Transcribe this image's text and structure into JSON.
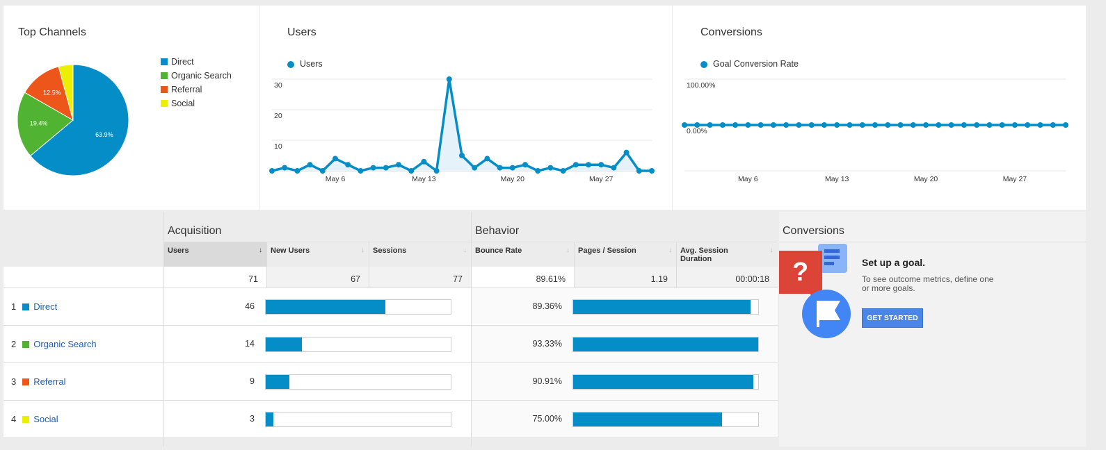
{
  "top_channels": {
    "title": "Top Channels",
    "slices": [
      {
        "name": "Direct",
        "percent": 63.9,
        "label": "63.9%",
        "color": "#058dc7"
      },
      {
        "name": "Organic Search",
        "percent": 19.4,
        "label": "19.4%",
        "color": "#50b432"
      },
      {
        "name": "Referral",
        "percent": 12.5,
        "label": "12.5%",
        "color": "#ed561b"
      },
      {
        "name": "Social",
        "percent": 4.2,
        "label": "",
        "color": "#edef00"
      }
    ]
  },
  "users_chart": {
    "title": "Users",
    "legend": "Users",
    "yticks": [
      "30",
      "20",
      "10"
    ],
    "xticks": [
      "May 6",
      "May 13",
      "May 20",
      "May 27"
    ]
  },
  "conversions_chart": {
    "title": "Conversions",
    "legend": "Goal Conversion Rate",
    "yticks": [
      "100.00%",
      "0.00%"
    ],
    "xticks": [
      "May 6",
      "May 13",
      "May 20",
      "May 27"
    ]
  },
  "chart_data": [
    {
      "type": "pie",
      "title": "Top Channels",
      "categories": [
        "Direct",
        "Organic Search",
        "Referral",
        "Social"
      ],
      "values": [
        63.9,
        19.4,
        12.5,
        4.2
      ]
    },
    {
      "type": "area",
      "title": "Users",
      "series": [
        {
          "name": "Users",
          "values": [
            0,
            1,
            0,
            2,
            0,
            4,
            2,
            0,
            1,
            1,
            2,
            0,
            3,
            0,
            30,
            5,
            1,
            4,
            1,
            1,
            2,
            0,
            1,
            0,
            2,
            2,
            2,
            1,
            6,
            0,
            0
          ]
        }
      ],
      "xticks": [
        "May 6",
        "May 13",
        "May 20",
        "May 27"
      ],
      "ylim": [
        0,
        30
      ]
    },
    {
      "type": "line",
      "title": "Conversions",
      "series": [
        {
          "name": "Goal Conversion Rate",
          "values": [
            0,
            0,
            0,
            0,
            0,
            0,
            0,
            0,
            0,
            0,
            0,
            0,
            0,
            0,
            0,
            0,
            0,
            0,
            0,
            0,
            0,
            0,
            0,
            0,
            0,
            0,
            0,
            0,
            0,
            0,
            0
          ]
        }
      ],
      "xticks": [
        "May 6",
        "May 13",
        "May 20",
        "May 27"
      ],
      "ylim": [
        0,
        100
      ]
    }
  ],
  "table": {
    "acquisition": "Acquisition",
    "behavior": "Behavior",
    "conversions": "Conversions",
    "columns": [
      "Users",
      "New Users",
      "Sessions",
      "Bounce Rate",
      "Pages / Session",
      "Avg. Session Duration"
    ],
    "totals": [
      "71",
      "67",
      "77",
      "89.61%",
      "1.19",
      "00:00:18"
    ],
    "rows": [
      {
        "rank": "1",
        "channel": "Direct",
        "color": "#058dc7",
        "users": "46",
        "users_frac": 0.648,
        "bounce": "89.36%",
        "bounce_frac": 0.9575
      },
      {
        "rank": "2",
        "channel": "Organic Search",
        "color": "#50b432",
        "users": "14",
        "users_frac": 0.197,
        "bounce": "93.33%",
        "bounce_frac": 1.0
      },
      {
        "rank": "3",
        "channel": "Referral",
        "color": "#ed561b",
        "users": "9",
        "users_frac": 0.127,
        "bounce": "90.91%",
        "bounce_frac": 0.974
      },
      {
        "rank": "4",
        "channel": "Social",
        "color": "#edef00",
        "users": "3",
        "users_frac": 0.042,
        "bounce": "75.00%",
        "bounce_frac": 0.804
      }
    ]
  },
  "goal": {
    "title": "Set up a goal.",
    "text": "To see outcome metrics, define one or more goals.",
    "button": "GET STARTED"
  }
}
